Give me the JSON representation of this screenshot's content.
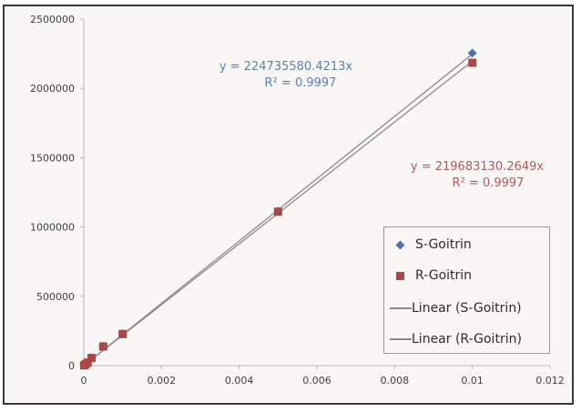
{
  "chart_data": {
    "type": "scatter",
    "title": "",
    "xlabel": "",
    "ylabel": "",
    "xlim": [
      0,
      0.012
    ],
    "ylim": [
      0,
      2500000
    ],
    "x_ticks": [
      "0",
      "0.002",
      "0.004",
      "0.006",
      "0.008",
      "0.01",
      "0.012"
    ],
    "y_ticks": [
      "0",
      "500000",
      "1000000",
      "1500000",
      "2000000",
      "2500000"
    ],
    "grid": false,
    "legend_position": "lower right",
    "series": [
      {
        "name": "S-Goitrin",
        "marker": "diamond",
        "color": "#4f74a6",
        "x": [
          1e-05,
          5e-05,
          0.0001,
          0.0002,
          0.0005,
          0.001,
          0.005,
          0.01
        ],
        "y": [
          2000,
          11000,
          23000,
          56000,
          140000,
          230000,
          1115000,
          2255000
        ]
      },
      {
        "name": "R-Goitrin",
        "marker": "square",
        "color": "#a84848",
        "x": [
          1e-05,
          5e-05,
          0.0001,
          0.0002,
          0.0005,
          0.001,
          0.005,
          0.01
        ],
        "y": [
          2000,
          10000,
          22000,
          55000,
          138000,
          228000,
          1110000,
          2185000
        ]
      }
    ],
    "trendlines": [
      {
        "name": "Linear (S-Goitrin)",
        "slope": 224735580.4213,
        "r2": 0.9997,
        "equation": "y = 224735580.4213x",
        "r2_label": "R² = 0.9997",
        "color": "#5b7fb1"
      },
      {
        "name": "Linear (R-Goitrin)",
        "slope": 219683130.2649,
        "r2": 0.9997,
        "equation": "y = 219683130.2649x",
        "r2_label": "R² = 0.9997",
        "color": "#b05a5a"
      }
    ]
  },
  "legend": {
    "items": [
      {
        "label": "S-Goitrin"
      },
      {
        "label": "R-Goitrin"
      },
      {
        "label": "Linear (S-Goitrin)"
      },
      {
        "label": "Linear (R-Goitrin)"
      }
    ]
  }
}
